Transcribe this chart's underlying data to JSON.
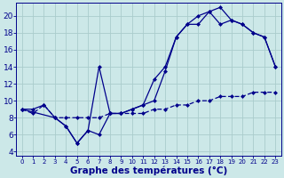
{
  "title": "Graphe des températures (°C)",
  "bg_color": "#cce8e8",
  "grid_color": "#aacccc",
  "line_color": "#00008b",
  "xlim": [
    -0.5,
    23.5
  ],
  "ylim": [
    3.5,
    21.5
  ],
  "xticks": [
    0,
    1,
    2,
    3,
    4,
    5,
    6,
    7,
    8,
    9,
    10,
    11,
    12,
    13,
    14,
    15,
    16,
    17,
    18,
    19,
    20,
    21,
    22,
    23
  ],
  "yticks": [
    4,
    6,
    8,
    10,
    12,
    14,
    16,
    18,
    20
  ],
  "line1_x": [
    0,
    1,
    2,
    3,
    4,
    5,
    6,
    7,
    8,
    9,
    10,
    11,
    12,
    13,
    14,
    15,
    16,
    17,
    18,
    19,
    20,
    21,
    22,
    23
  ],
  "line1_y": [
    9.0,
    9.0,
    9.5,
    8.0,
    7.0,
    5.0,
    6.5,
    6.0,
    8.5,
    8.5,
    9.0,
    9.5,
    10.0,
    13.5,
    17.5,
    19.0,
    19.0,
    20.5,
    21.0,
    19.5,
    19.0,
    18.0,
    17.5,
    14.0
  ],
  "line2_x": [
    0,
    3,
    4,
    5,
    6,
    7,
    8,
    9,
    10,
    11,
    12,
    13,
    14,
    15,
    16,
    17,
    18,
    19,
    20,
    21,
    22,
    23
  ],
  "line2_y": [
    9.0,
    8.0,
    7.0,
    5.0,
    6.5,
    14.0,
    8.5,
    8.5,
    9.0,
    9.5,
    12.5,
    14.0,
    17.5,
    19.0,
    20.0,
    20.5,
    19.0,
    19.5,
    19.0,
    18.0,
    17.5,
    14.0
  ],
  "line3_x": [
    0,
    1,
    2,
    3,
    4,
    5,
    6,
    7,
    8,
    9,
    10,
    11,
    12,
    13,
    14,
    15,
    16,
    17,
    18,
    19,
    20,
    21,
    22,
    23
  ],
  "line3_y": [
    9.0,
    8.5,
    9.5,
    8.0,
    8.0,
    8.0,
    8.0,
    8.0,
    8.5,
    8.5,
    8.5,
    8.5,
    9.0,
    9.0,
    9.5,
    9.5,
    10.0,
    10.0,
    10.5,
    10.5,
    10.5,
    11.0,
    11.0,
    11.0
  ],
  "xlabel_fontsize": 7.5,
  "ytick_fontsize": 6.5,
  "xtick_fontsize": 5.0
}
